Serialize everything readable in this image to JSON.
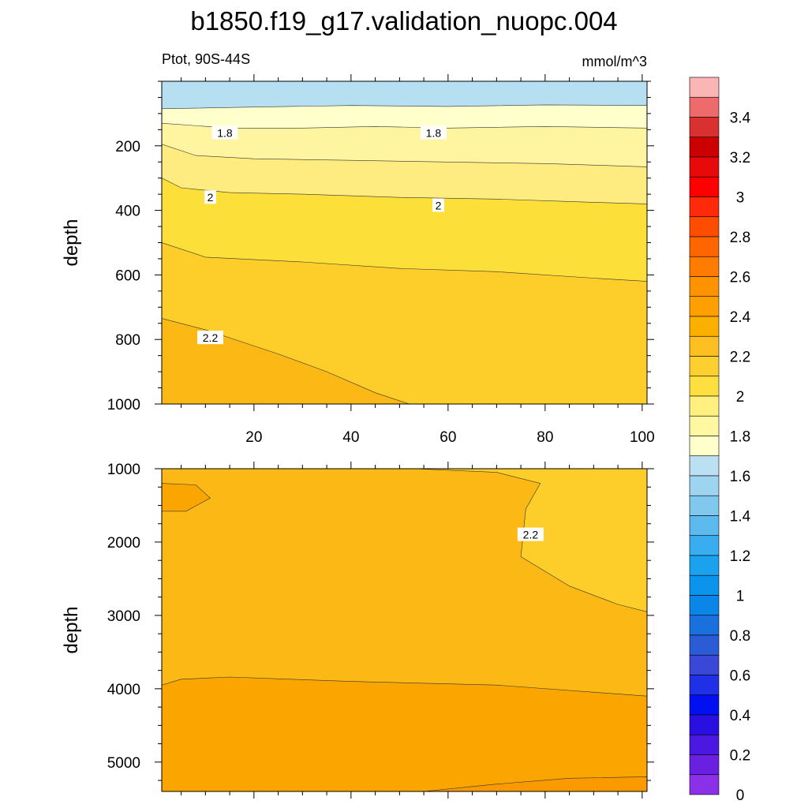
{
  "title": "b1850.f19_g17.validation_nuopc.004",
  "subtitle_left": "Ptot, 90S-44S",
  "subtitle_right": "mmol/m^3",
  "chart_data": [
    {
      "type": "contour",
      "panel": "upper",
      "ylabel": "depth",
      "xlim": [
        1,
        101
      ],
      "ylim": [
        0,
        1000
      ],
      "y_reversed": true,
      "xticks": [
        20,
        40,
        60,
        80,
        100
      ],
      "xtick_labels": [
        "20",
        "40",
        "60",
        "80",
        "100"
      ],
      "yticks": [
        200,
        400,
        600,
        800,
        1000
      ],
      "ytick_labels": [
        "200",
        "400",
        "600",
        "800",
        "1000"
      ],
      "contour_labels": [
        {
          "text": "1.8",
          "x": 14,
          "y": 160
        },
        {
          "text": "1.8",
          "x": 57,
          "y": 160
        },
        {
          "text": "2",
          "x": 11,
          "y": 360
        },
        {
          "text": "2",
          "x": 58,
          "y": 385
        },
        {
          "text": "2.2",
          "x": 11,
          "y": 795
        }
      ],
      "bands": [
        {
          "value_range": [
            1.5,
            1.6
          ],
          "color": "#b6dff2",
          "top": [
            [
              1,
              0
            ],
            [
              101,
              0
            ]
          ]
        },
        {
          "value_range": [
            1.7,
            1.8
          ],
          "color": "#ffffcc",
          "top": [
            [
              1,
              85
            ],
            [
              20,
              80
            ],
            [
              40,
              75
            ],
            [
              60,
              78
            ],
            [
              80,
              73
            ],
            [
              101,
              75
            ]
          ]
        },
        {
          "value_range": [
            1.8,
            1.9
          ],
          "color": "#fff5a0",
          "top": [
            [
              1,
              130
            ],
            [
              15,
              145
            ],
            [
              30,
              145
            ],
            [
              45,
              140
            ],
            [
              60,
              145
            ],
            [
              80,
              140
            ],
            [
              101,
              145
            ]
          ]
        },
        {
          "value_range": [
            1.9,
            2.0
          ],
          "color": "#feec80",
          "top": [
            [
              1,
              195
            ],
            [
              8,
              230
            ],
            [
              20,
              240
            ],
            [
              40,
              245
            ],
            [
              60,
              250
            ],
            [
              80,
              255
            ],
            [
              101,
              265
            ]
          ]
        },
        {
          "value_range": [
            2.0,
            2.1
          ],
          "color": "#fddf3a",
          "top": [
            [
              1,
              300
            ],
            [
              5,
              330
            ],
            [
              15,
              345
            ],
            [
              30,
              350
            ],
            [
              50,
              360
            ],
            [
              70,
              365
            ],
            [
              90,
              375
            ],
            [
              101,
              380
            ]
          ]
        },
        {
          "value_range": [
            2.1,
            2.2
          ],
          "color": "#fdcd2a",
          "top": [
            [
              1,
              500
            ],
            [
              10,
              545
            ],
            [
              30,
              560
            ],
            [
              50,
              580
            ],
            [
              70,
              590
            ],
            [
              90,
              610
            ],
            [
              101,
              620
            ]
          ]
        },
        {
          "value_range": [
            2.2,
            2.3
          ],
          "color": "#fcb916",
          "top": [
            [
              1,
              735
            ],
            [
              10,
              770
            ],
            [
              25,
              845
            ],
            [
              35,
              900
            ],
            [
              45,
              965
            ],
            [
              52,
              1000
            ]
          ]
        }
      ]
    },
    {
      "type": "contour",
      "panel": "lower",
      "ylabel": "depth",
      "xlim": [
        1,
        101
      ],
      "ylim": [
        1000,
        5400
      ],
      "y_reversed": true,
      "xticks": [
        20,
        40,
        60,
        80,
        100
      ],
      "xtick_labels": [],
      "yticks": [
        1000,
        2000,
        3000,
        4000,
        5000
      ],
      "ytick_labels": [
        "1000",
        "2000",
        "3000",
        "4000",
        "5000"
      ],
      "contour_labels": [
        {
          "text": "2.2",
          "x": 77,
          "y": 1900
        }
      ],
      "bands": [
        {
          "value_range": [
            2.2,
            2.3
          ],
          "color": "#fcb916",
          "top": [
            [
              1,
              1000
            ],
            [
              101,
              1000
            ]
          ]
        },
        {
          "value_range": [
            2.3,
            2.4
          ],
          "color": "#fba500",
          "top": [
            [
              1,
              3950
            ],
            [
              5,
              3870
            ],
            [
              15,
              3840
            ],
            [
              40,
              3900
            ],
            [
              70,
              3950
            ],
            [
              101,
              4100
            ]
          ]
        },
        {
          "value_range": [
            2.1,
            2.2
          ],
          "color": "#fdcd2a",
          "top": [
            [
              53,
              1000
            ],
            [
              70,
              1050
            ],
            [
              79,
              1200
            ],
            [
              76,
              1550
            ],
            [
              75,
              2200
            ],
            [
              85,
              2600
            ],
            [
              95,
              2850
            ],
            [
              101,
              2950
            ]
          ],
          "closed_to": "top-right"
        },
        {
          "value_range": [
            2.3,
            2.4
          ],
          "color": "#fba500",
          "patch": "upper-left",
          "top": [
            [
              1,
              1200
            ],
            [
              8,
              1220
            ],
            [
              11,
              1400
            ],
            [
              6,
              1580
            ],
            [
              1,
              1580
            ]
          ]
        },
        {
          "value_range": [
            2.4,
            2.5
          ],
          "color": "#fb9a00",
          "patch": "bottom-right",
          "top": [
            [
              55,
              5400
            ],
            [
              70,
              5300
            ],
            [
              85,
              5220
            ],
            [
              101,
              5200
            ]
          ]
        }
      ]
    }
  ],
  "colorbar": {
    "labels": [
      "3.4",
      "3.2",
      "3",
      "2.8",
      "2.6",
      "2.4",
      "2.2",
      "2",
      "1.8",
      "1.6",
      "1.4",
      "1.2",
      "1",
      "0.8",
      "0.6",
      "0.4",
      "0.2",
      "0"
    ],
    "colors": [
      "#fbb5b5",
      "#ee6b6b",
      "#d93030",
      "#cc0000",
      "#e80a0a",
      "#ff0000",
      "#ff2a0a",
      "#ff4d00",
      "#ff6600",
      "#ff7c00",
      "#ff9200",
      "#ffa000",
      "#fbb000",
      "#fdc020",
      "#fdd030",
      "#fde040",
      "#fff080",
      "#fff8a0",
      "#ffffcc",
      "#bae0f2",
      "#9ed4f0",
      "#80c8ee",
      "#5cbaef",
      "#38aef0",
      "#1aa2ef",
      "#0a94ee",
      "#0a85e8",
      "#1a70dc",
      "#2a5cd6",
      "#3a48d8",
      "#2030e6",
      "#0010f0",
      "#2a10e0",
      "#4a18e0",
      "#6a20e0",
      "#8a30e8"
    ]
  }
}
